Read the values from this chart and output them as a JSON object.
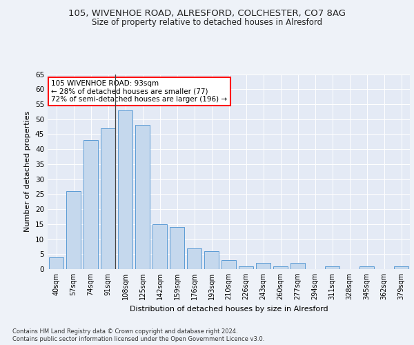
{
  "title1": "105, WIVENHOE ROAD, ALRESFORD, COLCHESTER, CO7 8AG",
  "title2": "Size of property relative to detached houses in Alresford",
  "xlabel": "Distribution of detached houses by size in Alresford",
  "ylabel": "Number of detached properties",
  "categories": [
    "40sqm",
    "57sqm",
    "74sqm",
    "91sqm",
    "108sqm",
    "125sqm",
    "142sqm",
    "159sqm",
    "176sqm",
    "193sqm",
    "210sqm",
    "226sqm",
    "243sqm",
    "260sqm",
    "277sqm",
    "294sqm",
    "311sqm",
    "328sqm",
    "345sqm",
    "362sqm",
    "379sqm"
  ],
  "values": [
    4,
    26,
    43,
    47,
    53,
    48,
    15,
    14,
    7,
    6,
    3,
    1,
    2,
    1,
    2,
    0,
    1,
    0,
    1,
    0,
    1
  ],
  "bar_color": "#c5d8ed",
  "bar_edge_color": "#5b9bd5",
  "annotation_text": "105 WIVENHOE ROAD: 93sqm\n← 28% of detached houses are smaller (77)\n72% of semi-detached houses are larger (196) →",
  "annotation_box_color": "white",
  "annotation_box_edge_color": "red",
  "ylim": [
    0,
    65
  ],
  "yticks": [
    0,
    5,
    10,
    15,
    20,
    25,
    30,
    35,
    40,
    45,
    50,
    55,
    60,
    65
  ],
  "footnote1": "Contains HM Land Registry data © Crown copyright and database right 2024.",
  "footnote2": "Contains public sector information licensed under the Open Government Licence v3.0.",
  "background_color": "#eef2f8",
  "plot_bg_color": "#e4eaf5",
  "grid_color": "white",
  "title_fontsize": 9.5,
  "subtitle_fontsize": 8.5
}
